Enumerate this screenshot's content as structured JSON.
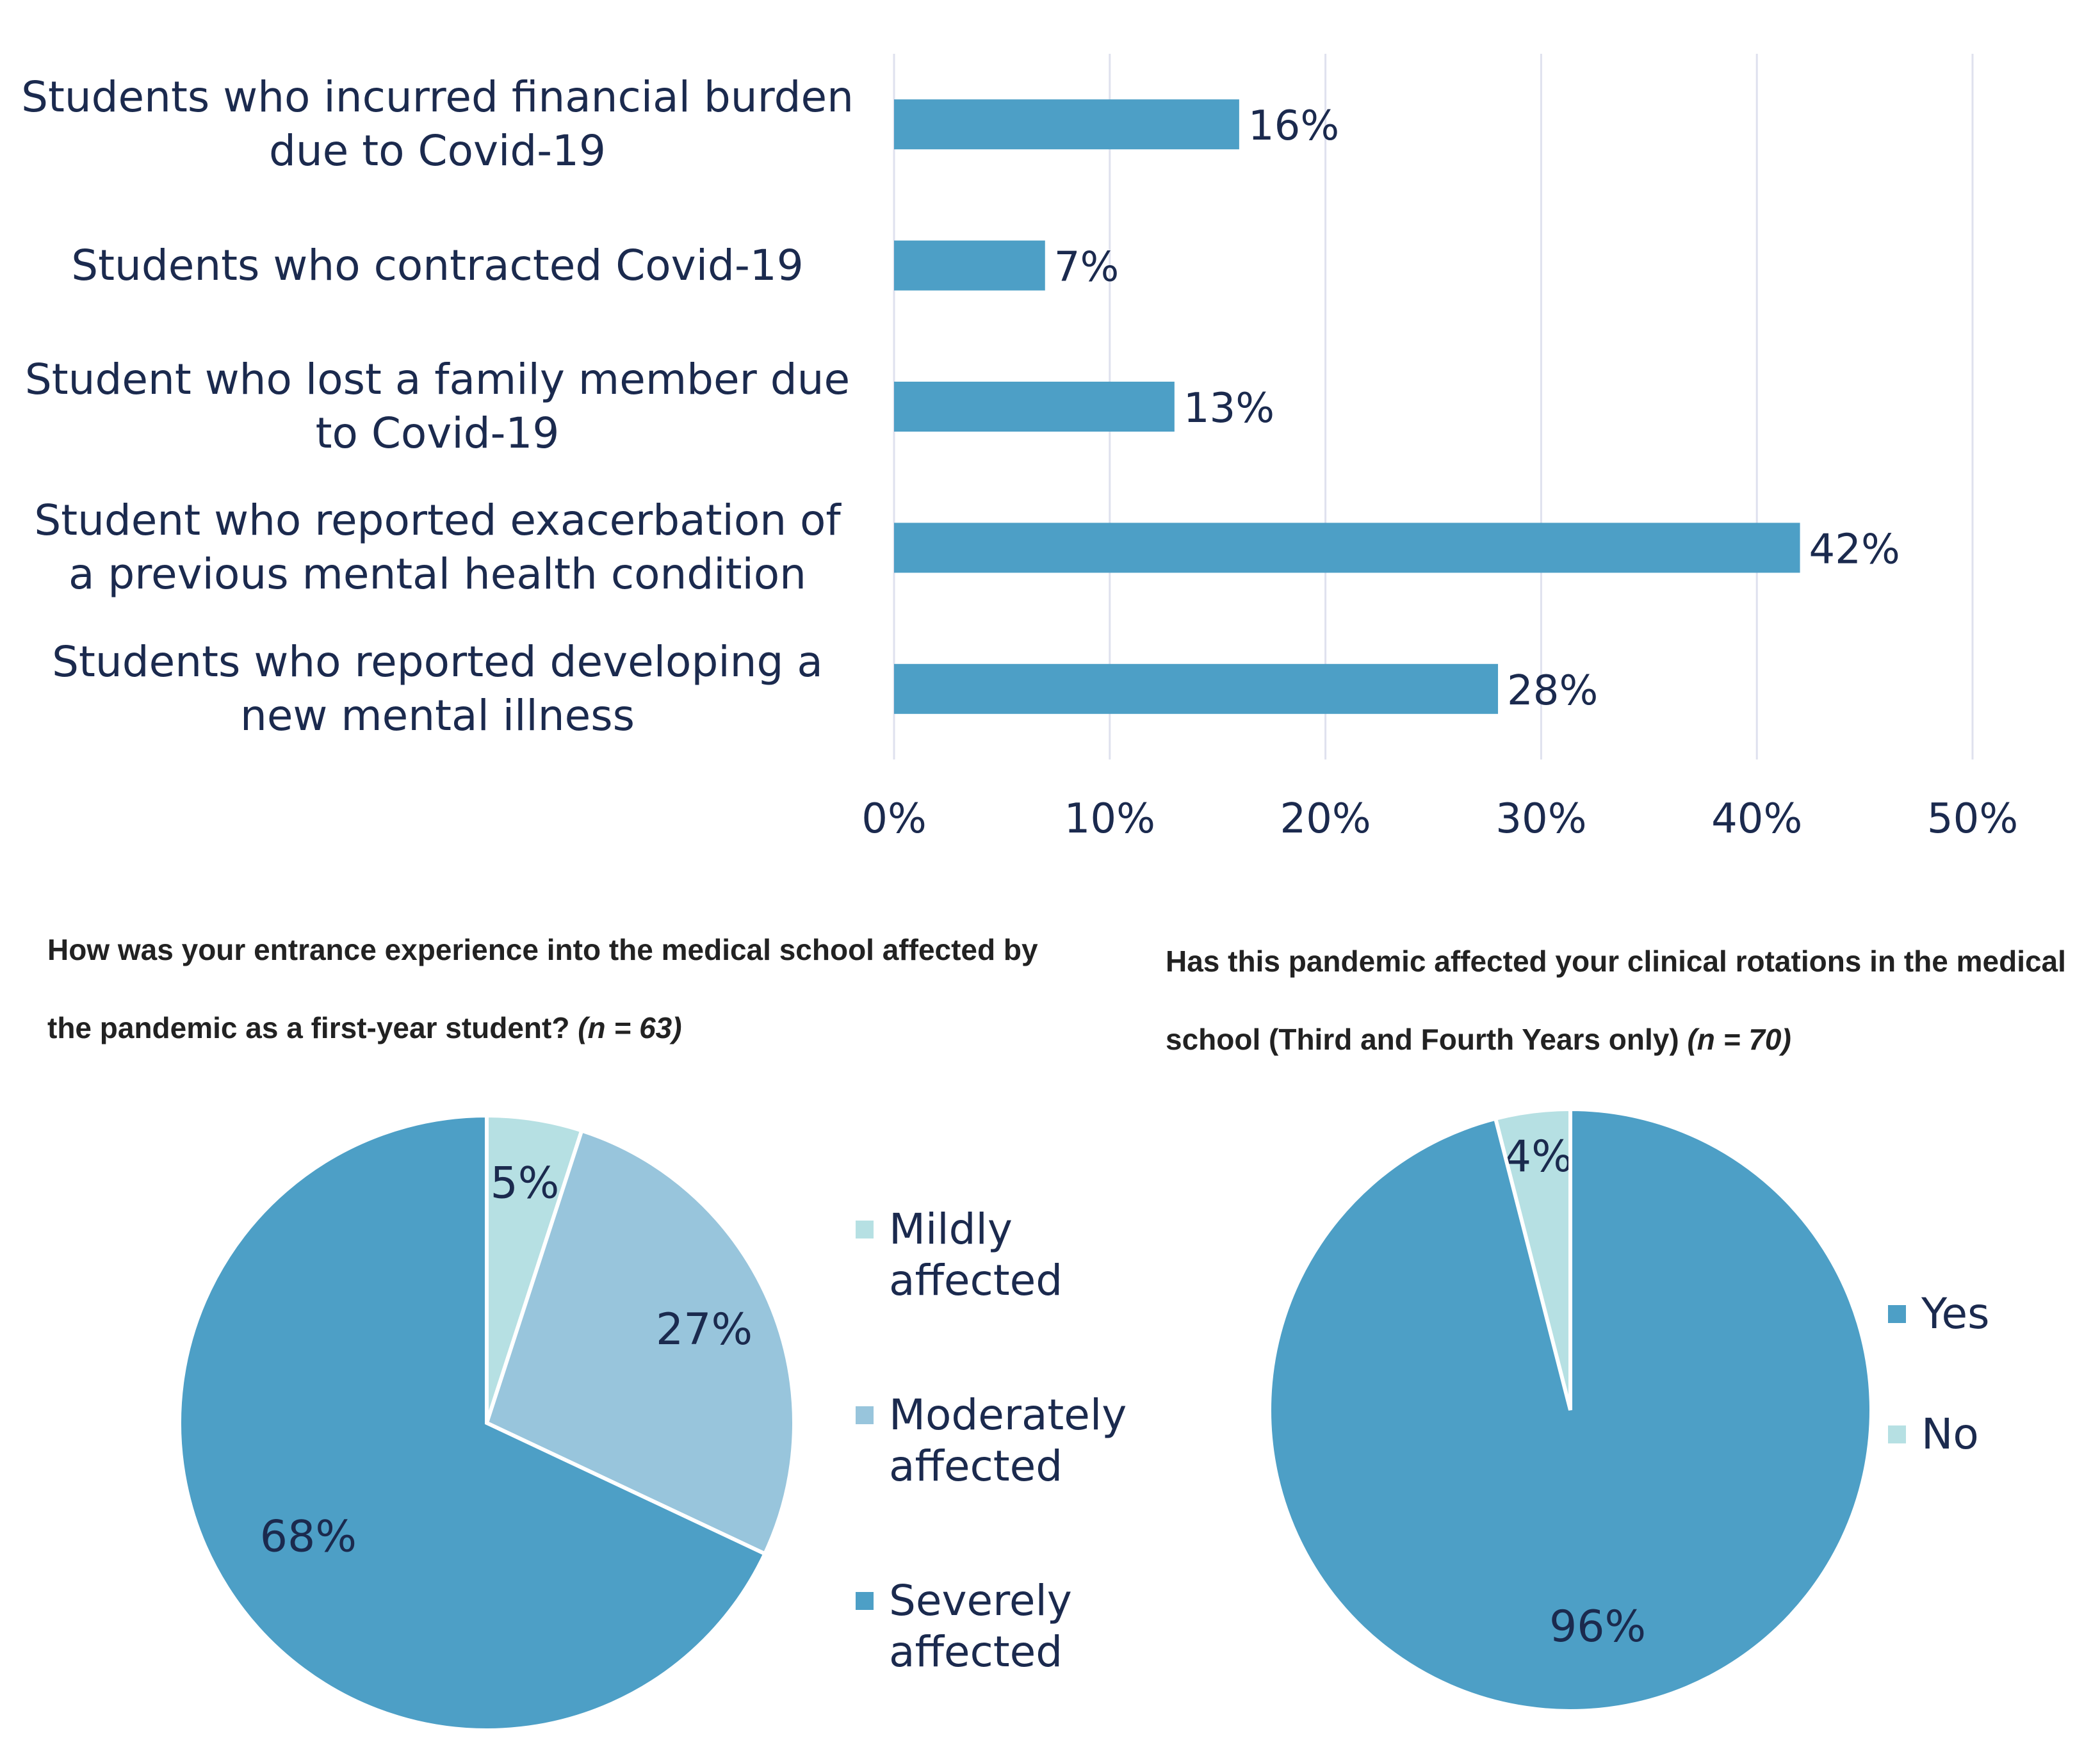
{
  "colors": {
    "bar": "#4d9fc6",
    "grid": "#dfe1ee",
    "text": "#1b2a4e",
    "mild": "#b6e0e3",
    "moderate": "#98c5dc",
    "severe": "#4d9fc6",
    "yes": "#4d9fc6",
    "no": "#b6e0e3"
  },
  "chart_data": [
    {
      "type": "bar",
      "orientation": "horizontal",
      "categories": [
        "Students who incurred financial burden due to Covid-19",
        "Students who contracted Covid-19",
        "Student who lost a family member due to Covid-19",
        "Student who reported exacerbation of a previous mental health condition",
        "Students who reported developing a new mental illness"
      ],
      "values": [
        16,
        7,
        13,
        42,
        28
      ],
      "value_labels": [
        "16%",
        "7%",
        "13%",
        "42%",
        "28%"
      ],
      "xlim": [
        0,
        50
      ],
      "xticks": [
        0,
        10,
        20,
        30,
        40,
        50
      ],
      "xtick_labels": [
        "0%",
        "10%",
        "20%",
        "30%",
        "40%",
        "50%"
      ],
      "grid": true,
      "title": "",
      "xlabel": "",
      "ylabel": ""
    },
    {
      "type": "pie",
      "title": "How was your entrance experience into the medical school affected by the pandemic as a first-year student?",
      "n_label": "(n = 63)",
      "labels": [
        "Mildly affected",
        "Moderately affected",
        "Severely affected"
      ],
      "values": [
        5,
        27,
        68
      ],
      "value_labels": [
        "5%",
        "27%",
        "68%"
      ],
      "legend_position": "right"
    },
    {
      "type": "pie",
      "title": "Has this pandemic affected your clinical rotations in the medical school (Third and Fourth Years only)",
      "n_label": "(n = 70)",
      "labels": [
        "No",
        "Yes"
      ],
      "values": [
        4,
        96
      ],
      "value_labels": [
        "4%",
        "96%"
      ],
      "legend": [
        "Yes",
        "No"
      ],
      "legend_position": "right"
    }
  ]
}
